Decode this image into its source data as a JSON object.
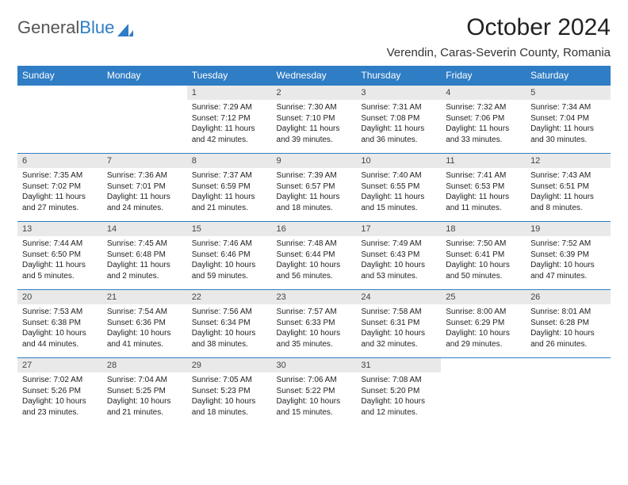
{
  "logo": {
    "word1": "General",
    "word2": "Blue"
  },
  "header": {
    "title": "October 2024",
    "location": "Verendin, Caras-Severin County, Romania"
  },
  "weekdays": [
    "Sunday",
    "Monday",
    "Tuesday",
    "Wednesday",
    "Thursday",
    "Friday",
    "Saturday"
  ],
  "colors": {
    "accent": "#2f7dc4",
    "dayBg": "#e9e9e9"
  },
  "weeks": [
    [
      null,
      null,
      {
        "n": "1",
        "sr": "Sunrise: 7:29 AM",
        "ss": "Sunset: 7:12 PM",
        "dl": "Daylight: 11 hours and 42 minutes."
      },
      {
        "n": "2",
        "sr": "Sunrise: 7:30 AM",
        "ss": "Sunset: 7:10 PM",
        "dl": "Daylight: 11 hours and 39 minutes."
      },
      {
        "n": "3",
        "sr": "Sunrise: 7:31 AM",
        "ss": "Sunset: 7:08 PM",
        "dl": "Daylight: 11 hours and 36 minutes."
      },
      {
        "n": "4",
        "sr": "Sunrise: 7:32 AM",
        "ss": "Sunset: 7:06 PM",
        "dl": "Daylight: 11 hours and 33 minutes."
      },
      {
        "n": "5",
        "sr": "Sunrise: 7:34 AM",
        "ss": "Sunset: 7:04 PM",
        "dl": "Daylight: 11 hours and 30 minutes."
      }
    ],
    [
      {
        "n": "6",
        "sr": "Sunrise: 7:35 AM",
        "ss": "Sunset: 7:02 PM",
        "dl": "Daylight: 11 hours and 27 minutes."
      },
      {
        "n": "7",
        "sr": "Sunrise: 7:36 AM",
        "ss": "Sunset: 7:01 PM",
        "dl": "Daylight: 11 hours and 24 minutes."
      },
      {
        "n": "8",
        "sr": "Sunrise: 7:37 AM",
        "ss": "Sunset: 6:59 PM",
        "dl": "Daylight: 11 hours and 21 minutes."
      },
      {
        "n": "9",
        "sr": "Sunrise: 7:39 AM",
        "ss": "Sunset: 6:57 PM",
        "dl": "Daylight: 11 hours and 18 minutes."
      },
      {
        "n": "10",
        "sr": "Sunrise: 7:40 AM",
        "ss": "Sunset: 6:55 PM",
        "dl": "Daylight: 11 hours and 15 minutes."
      },
      {
        "n": "11",
        "sr": "Sunrise: 7:41 AM",
        "ss": "Sunset: 6:53 PM",
        "dl": "Daylight: 11 hours and 11 minutes."
      },
      {
        "n": "12",
        "sr": "Sunrise: 7:43 AM",
        "ss": "Sunset: 6:51 PM",
        "dl": "Daylight: 11 hours and 8 minutes."
      }
    ],
    [
      {
        "n": "13",
        "sr": "Sunrise: 7:44 AM",
        "ss": "Sunset: 6:50 PM",
        "dl": "Daylight: 11 hours and 5 minutes."
      },
      {
        "n": "14",
        "sr": "Sunrise: 7:45 AM",
        "ss": "Sunset: 6:48 PM",
        "dl": "Daylight: 11 hours and 2 minutes."
      },
      {
        "n": "15",
        "sr": "Sunrise: 7:46 AM",
        "ss": "Sunset: 6:46 PM",
        "dl": "Daylight: 10 hours and 59 minutes."
      },
      {
        "n": "16",
        "sr": "Sunrise: 7:48 AM",
        "ss": "Sunset: 6:44 PM",
        "dl": "Daylight: 10 hours and 56 minutes."
      },
      {
        "n": "17",
        "sr": "Sunrise: 7:49 AM",
        "ss": "Sunset: 6:43 PM",
        "dl": "Daylight: 10 hours and 53 minutes."
      },
      {
        "n": "18",
        "sr": "Sunrise: 7:50 AM",
        "ss": "Sunset: 6:41 PM",
        "dl": "Daylight: 10 hours and 50 minutes."
      },
      {
        "n": "19",
        "sr": "Sunrise: 7:52 AM",
        "ss": "Sunset: 6:39 PM",
        "dl": "Daylight: 10 hours and 47 minutes."
      }
    ],
    [
      {
        "n": "20",
        "sr": "Sunrise: 7:53 AM",
        "ss": "Sunset: 6:38 PM",
        "dl": "Daylight: 10 hours and 44 minutes."
      },
      {
        "n": "21",
        "sr": "Sunrise: 7:54 AM",
        "ss": "Sunset: 6:36 PM",
        "dl": "Daylight: 10 hours and 41 minutes."
      },
      {
        "n": "22",
        "sr": "Sunrise: 7:56 AM",
        "ss": "Sunset: 6:34 PM",
        "dl": "Daylight: 10 hours and 38 minutes."
      },
      {
        "n": "23",
        "sr": "Sunrise: 7:57 AM",
        "ss": "Sunset: 6:33 PM",
        "dl": "Daylight: 10 hours and 35 minutes."
      },
      {
        "n": "24",
        "sr": "Sunrise: 7:58 AM",
        "ss": "Sunset: 6:31 PM",
        "dl": "Daylight: 10 hours and 32 minutes."
      },
      {
        "n": "25",
        "sr": "Sunrise: 8:00 AM",
        "ss": "Sunset: 6:29 PM",
        "dl": "Daylight: 10 hours and 29 minutes."
      },
      {
        "n": "26",
        "sr": "Sunrise: 8:01 AM",
        "ss": "Sunset: 6:28 PM",
        "dl": "Daylight: 10 hours and 26 minutes."
      }
    ],
    [
      {
        "n": "27",
        "sr": "Sunrise: 7:02 AM",
        "ss": "Sunset: 5:26 PM",
        "dl": "Daylight: 10 hours and 23 minutes."
      },
      {
        "n": "28",
        "sr": "Sunrise: 7:04 AM",
        "ss": "Sunset: 5:25 PM",
        "dl": "Daylight: 10 hours and 21 minutes."
      },
      {
        "n": "29",
        "sr": "Sunrise: 7:05 AM",
        "ss": "Sunset: 5:23 PM",
        "dl": "Daylight: 10 hours and 18 minutes."
      },
      {
        "n": "30",
        "sr": "Sunrise: 7:06 AM",
        "ss": "Sunset: 5:22 PM",
        "dl": "Daylight: 10 hours and 15 minutes."
      },
      {
        "n": "31",
        "sr": "Sunrise: 7:08 AM",
        "ss": "Sunset: 5:20 PM",
        "dl": "Daylight: 10 hours and 12 minutes."
      },
      null,
      null
    ]
  ]
}
